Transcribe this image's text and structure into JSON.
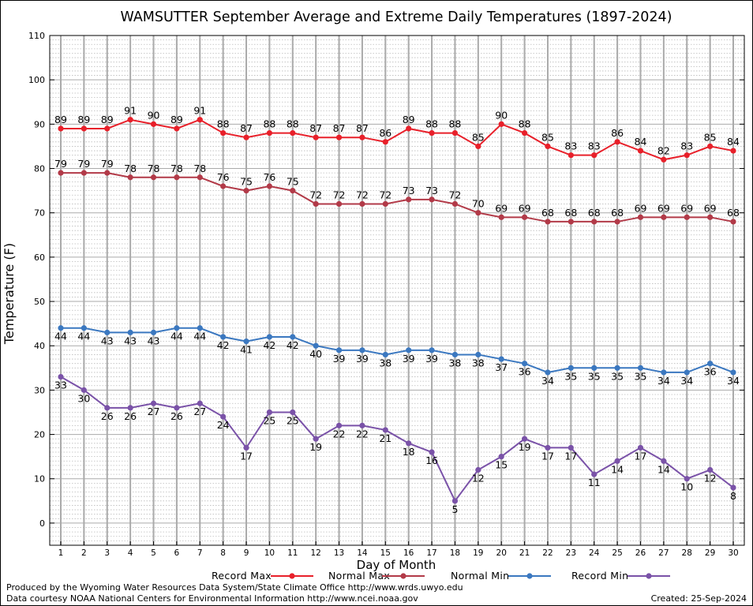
{
  "chart_data": {
    "type": "line",
    "title": "WAMSUTTER September Average and Extreme Daily Temperatures (1897-2024)",
    "xlabel": "Day of Month",
    "ylabel": "Temperature (F)",
    "ylim": [
      -5,
      110
    ],
    "yticks": [
      0,
      10,
      20,
      30,
      40,
      50,
      60,
      70,
      80,
      90,
      100,
      110
    ],
    "x": [
      1,
      2,
      3,
      4,
      5,
      6,
      7,
      8,
      9,
      10,
      11,
      12,
      13,
      14,
      15,
      16,
      17,
      18,
      19,
      20,
      21,
      22,
      23,
      24,
      25,
      26,
      27,
      28,
      29,
      30
    ],
    "grid": true,
    "legend_position": "bottom",
    "series": [
      {
        "name": "Record Max",
        "color": "#e8202a",
        "label_position": "above",
        "values": [
          89,
          89,
          89,
          91,
          90,
          89,
          91,
          88,
          87,
          88,
          88,
          87,
          87,
          87,
          86,
          89,
          88,
          88,
          85,
          90,
          88,
          85,
          83,
          83,
          86,
          84,
          82,
          83,
          85,
          84
        ]
      },
      {
        "name": "Normal Max",
        "color": "#b23a48",
        "label_position": "above",
        "values": [
          79,
          79,
          79,
          78,
          78,
          78,
          78,
          76,
          75,
          76,
          75,
          72,
          72,
          72,
          72,
          73,
          73,
          72,
          70,
          69,
          69,
          68,
          68,
          68,
          68,
          69,
          69,
          69,
          69,
          68
        ]
      },
      {
        "name": "Normal Min",
        "color": "#3b78c0",
        "label_position": "below",
        "values": [
          44,
          44,
          43,
          43,
          43,
          44,
          44,
          42,
          41,
          42,
          42,
          40,
          39,
          39,
          38,
          39,
          39,
          38,
          38,
          37,
          36,
          34,
          35,
          35,
          35,
          35,
          34,
          34,
          36,
          34
        ]
      },
      {
        "name": "Record Min",
        "color": "#7a52a8",
        "label_position": "below",
        "values": [
          33,
          30,
          26,
          26,
          27,
          26,
          27,
          24,
          17,
          25,
          25,
          19,
          22,
          22,
          21,
          18,
          16,
          5,
          12,
          15,
          19,
          17,
          17,
          11,
          14,
          17,
          14,
          10,
          12,
          8
        ]
      }
    ]
  },
  "footer": {
    "credit_line_1": "Produced by the Wyoming Water Resources Data System/State Climate Office http://www.wrds.uwyo.edu",
    "credit_line_2": "Data courtesy NOAA National Centers for Environmental Information http://www.ncei.noaa.gov",
    "created": "Created:  25-Sep-2024"
  }
}
